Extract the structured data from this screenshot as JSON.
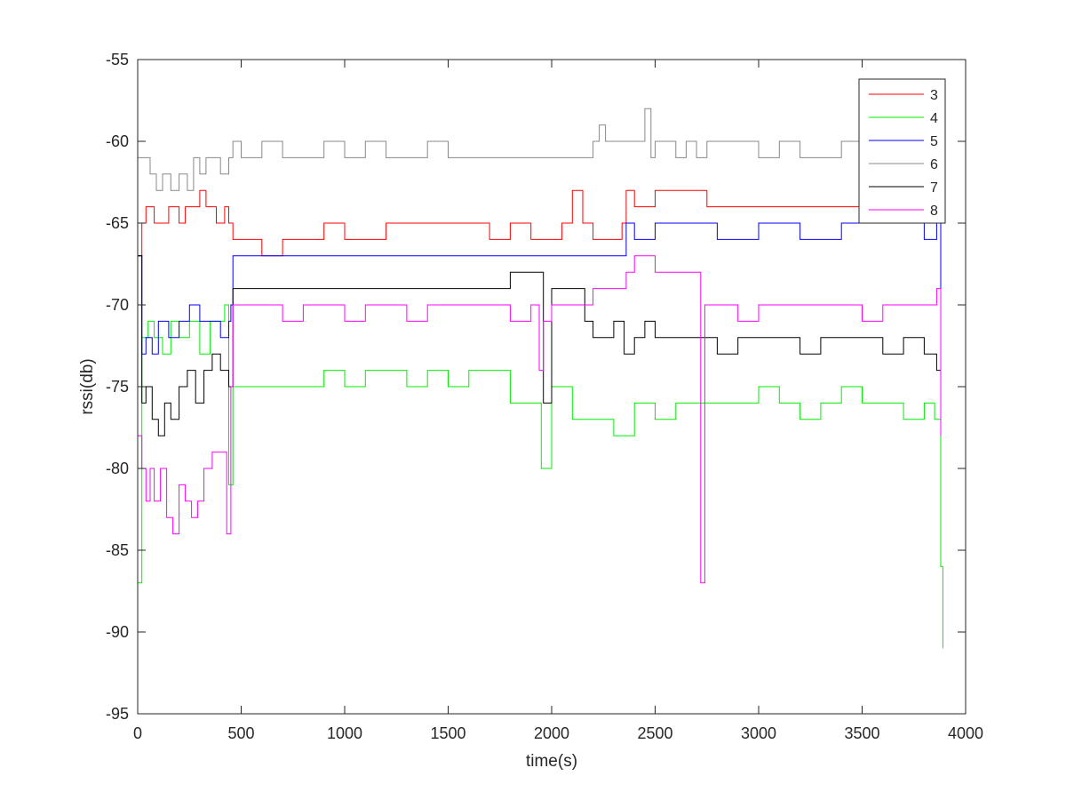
{
  "chart_data": {
    "type": "line",
    "title": "",
    "xlabel": "time(s)",
    "ylabel": "rssi(db)",
    "xlim": [
      0,
      4000
    ],
    "ylim": [
      -95,
      -55
    ],
    "xticks": [
      0,
      500,
      1000,
      1500,
      2000,
      2500,
      3000,
      3500,
      4000
    ],
    "yticks": [
      -55,
      -60,
      -65,
      -70,
      -75,
      -80,
      -85,
      -90,
      -95
    ],
    "grid": false,
    "legend_position": "top-right",
    "series": [
      {
        "name": "3",
        "color": "#ff0000",
        "x": [
          0,
          20,
          40,
          80,
          150,
          200,
          230,
          270,
          300,
          330,
          380,
          420,
          440,
          460,
          520,
          600,
          700,
          800,
          900,
          1000,
          1200,
          1400,
          1600,
          1700,
          1800,
          1900,
          2000,
          2050,
          2100,
          2150,
          2200,
          2300,
          2340,
          2360,
          2400,
          2500,
          2600,
          2700,
          2750,
          2800,
          2900,
          3000,
          3200,
          3400,
          3600,
          3800,
          3860,
          3880
        ],
        "y": [
          -67,
          -65,
          -64,
          -65,
          -64,
          -65,
          -64,
          -64,
          -63,
          -64,
          -65,
          -64,
          -65,
          -66,
          -66,
          -67,
          -66,
          -66,
          -65,
          -66,
          -65,
          -65,
          -65,
          -66,
          -65,
          -66,
          -66,
          -65,
          -63,
          -65,
          -66,
          -66,
          -65,
          -63,
          -64,
          -63,
          -63,
          -63,
          -64,
          -64,
          -64,
          -64,
          -64,
          -64,
          -64,
          -64,
          -64,
          -66
        ]
      },
      {
        "name": "4",
        "color": "#00ee00",
        "x": [
          0,
          20,
          50,
          80,
          120,
          160,
          200,
          250,
          300,
          350,
          420,
          440,
          460,
          500,
          600,
          700,
          800,
          900,
          1000,
          1100,
          1200,
          1300,
          1400,
          1500,
          1600,
          1700,
          1800,
          1900,
          1950,
          2000,
          2100,
          2200,
          2300,
          2400,
          2500,
          2600,
          2700,
          2800,
          2900,
          3000,
          3100,
          3200,
          3300,
          3400,
          3500,
          3600,
          3700,
          3800,
          3850,
          3880,
          3890
        ],
        "y": [
          -87,
          -72,
          -71,
          -72,
          -73,
          -71,
          -72,
          -71,
          -73,
          -71,
          -70,
          -81,
          -75,
          -75,
          -75,
          -75,
          -75,
          -74,
          -75,
          -74,
          -74,
          -75,
          -74,
          -75,
          -74,
          -74,
          -76,
          -76,
          -80,
          -75,
          -77,
          -77,
          -78,
          -76,
          -77,
          -76,
          -76,
          -76,
          -76,
          -75,
          -76,
          -77,
          -76,
          -75,
          -76,
          -76,
          -77,
          -76,
          -77,
          -86,
          -91
        ]
      },
      {
        "name": "5",
        "color": "#0000ff",
        "x": [
          0,
          20,
          40,
          70,
          100,
          150,
          200,
          250,
          300,
          350,
          400,
          440,
          450,
          460,
          600,
          800,
          1000,
          1200,
          1400,
          1600,
          1800,
          2000,
          2150,
          2160,
          2300,
          2340,
          2360,
          2400,
          2500,
          2600,
          2700,
          2800,
          2900,
          3000,
          3200,
          3400,
          3600,
          3800,
          3860,
          3880
        ],
        "y": [
          -67,
          -73,
          -72,
          -73,
          -71,
          -72,
          -71,
          -70,
          -71,
          -71,
          -72,
          -71,
          -70,
          -67,
          -67,
          -67,
          -67,
          -67,
          -67,
          -67,
          -67,
          -67,
          -67,
          -67,
          -67,
          -67,
          -65,
          -66,
          -65,
          -65,
          -65,
          -66,
          -66,
          -65,
          -66,
          -65,
          -65,
          -66,
          -65,
          -69
        ]
      },
      {
        "name": "6",
        "color": "#888888",
        "x": [
          0,
          30,
          60,
          90,
          120,
          160,
          200,
          240,
          270,
          300,
          330,
          360,
          400,
          440,
          460,
          500,
          600,
          700,
          800,
          900,
          1000,
          1100,
          1200,
          1300,
          1400,
          1500,
          1600,
          1700,
          1800,
          1900,
          2000,
          2100,
          2200,
          2230,
          2260,
          2300,
          2400,
          2450,
          2480,
          2500,
          2550,
          2600,
          2650,
          2700,
          2750,
          2800,
          2900,
          3000,
          3100,
          3200,
          3300,
          3400,
          3500,
          3600,
          3700,
          3800,
          3880
        ],
        "y": [
          -61,
          -61,
          -62,
          -63,
          -62,
          -63,
          -62,
          -63,
          -61,
          -62,
          -61,
          -61,
          -62,
          -61,
          -60,
          -61,
          -60,
          -61,
          -61,
          -60,
          -61,
          -60,
          -61,
          -61,
          -60,
          -61,
          -61,
          -61,
          -61,
          -61,
          -61,
          -61,
          -60,
          -59,
          -60,
          -60,
          -60,
          -58,
          -61,
          -60,
          -60,
          -61,
          -60,
          -61,
          -60,
          -60,
          -60,
          -61,
          -60,
          -61,
          -61,
          -60,
          -61,
          -60,
          -60,
          -60,
          -61
        ]
      },
      {
        "name": "7",
        "color": "#000000",
        "x": [
          0,
          20,
          40,
          70,
          100,
          130,
          160,
          200,
          240,
          280,
          320,
          360,
          400,
          440,
          460,
          600,
          800,
          1000,
          1200,
          1400,
          1600,
          1700,
          1800,
          1900,
          1940,
          1960,
          2000,
          2100,
          2160,
          2200,
          2250,
          2300,
          2350,
          2400,
          2450,
          2500,
          2600,
          2700,
          2800,
          2900,
          3000,
          3100,
          3200,
          3300,
          3400,
          3500,
          3600,
          3700,
          3800,
          3860,
          3880
        ],
        "y": [
          -67,
          -76,
          -75,
          -77,
          -78,
          -76,
          -77,
          -75,
          -74,
          -76,
          -74,
          -73,
          -74,
          -75,
          -69,
          -69,
          -69,
          -69,
          -69,
          -69,
          -69,
          -69,
          -68,
          -68,
          -68,
          -76,
          -69,
          -69,
          -71,
          -72,
          -72,
          -71,
          -73,
          -72,
          -71,
          -72,
          -72,
          -72,
          -73,
          -72,
          -72,
          -72,
          -73,
          -72,
          -72,
          -72,
          -73,
          -72,
          -73,
          -74,
          -73
        ]
      },
      {
        "name": "8",
        "color": "#ff00ff",
        "x": [
          0,
          20,
          40,
          60,
          80,
          110,
          140,
          170,
          200,
          230,
          260,
          290,
          320,
          360,
          400,
          430,
          450,
          460,
          500,
          600,
          700,
          800,
          900,
          1000,
          1100,
          1200,
          1300,
          1400,
          1500,
          1600,
          1700,
          1800,
          1900,
          1940,
          1960,
          2000,
          2100,
          2200,
          2300,
          2340,
          2360,
          2400,
          2500,
          2600,
          2700,
          2720,
          2740,
          2800,
          2900,
          3000,
          3100,
          3200,
          3300,
          3400,
          3500,
          3600,
          3700,
          3800,
          3860,
          3880
        ],
        "y": [
          -78,
          -80,
          -82,
          -80,
          -82,
          -80,
          -83,
          -84,
          -81,
          -82,
          -83,
          -82,
          -80,
          -79,
          -79,
          -84,
          -75,
          -70,
          -70,
          -70,
          -71,
          -70,
          -70,
          -71,
          -70,
          -70,
          -71,
          -70,
          -70,
          -70,
          -70,
          -71,
          -70,
          -74,
          -71,
          -70,
          -70,
          -69,
          -69,
          -69,
          -68,
          -67,
          -68,
          -68,
          -68,
          -87,
          -70,
          -70,
          -71,
          -70,
          -70,
          -70,
          -70,
          -70,
          -71,
          -70,
          -70,
          -70,
          -69,
          -78
        ]
      }
    ]
  }
}
